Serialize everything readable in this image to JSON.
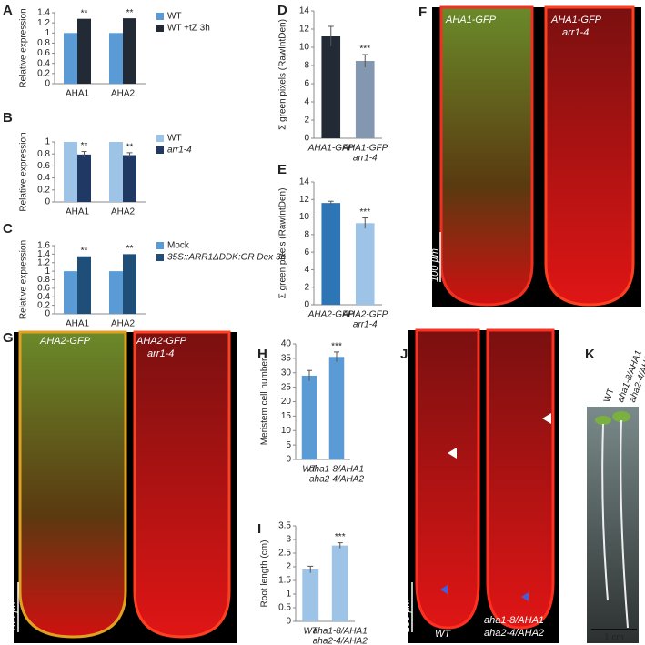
{
  "chart_data": [
    {
      "type": "bar",
      "panel": "A",
      "y_label": "Relative expression",
      "categories": [
        [
          "AHA1"
        ],
        [
          "AHA2"
        ]
      ],
      "series": [
        {
          "name": "WT",
          "color": "#5b9bd5",
          "values": [
            1,
            1
          ]
        },
        {
          "name": "WT +tZ 3h",
          "color": "#222a35",
          "values": [
            1.28,
            1.29
          ],
          "significance": [
            "**",
            "**"
          ]
        }
      ],
      "ylim": [
        0,
        1.4
      ],
      "yticks": [
        0,
        0.2,
        0.4,
        0.6,
        0.8,
        1,
        1.2,
        1.4
      ]
    },
    {
      "type": "bar",
      "panel": "B",
      "y_label": "Relative expression",
      "categories": [
        [
          "AHA1"
        ],
        [
          "AHA2"
        ]
      ],
      "series": [
        {
          "name": "WT",
          "color": "#9dc3e6",
          "values": [
            1,
            1
          ]
        },
        {
          "name": "arr1-4",
          "color": "#1f3864",
          "values": [
            0.79,
            0.78
          ],
          "errors": [
            0.05,
            0.04
          ],
          "significance": [
            "**",
            "**"
          ]
        }
      ],
      "ylim": [
        0,
        1
      ],
      "yticks": [
        0,
        0.2,
        0.4,
        0.6,
        0.8,
        1
      ]
    },
    {
      "type": "bar",
      "panel": "C",
      "y_label": "Relative expression",
      "categories": [
        [
          "AHA1"
        ],
        [
          "AHA2"
        ]
      ],
      "series": [
        {
          "name": "Mock",
          "color": "#5b9bd5",
          "values": [
            1,
            1
          ]
        },
        {
          "name": "35S::ARR1ΔDDK:GR Dex 3h",
          "color": "#1f4e79",
          "values": [
            1.35,
            1.4
          ],
          "significance": [
            "**",
            "**"
          ]
        }
      ],
      "ylim": [
        0,
        1.6
      ],
      "yticks": [
        0,
        0.2,
        0.4,
        0.6,
        0.8,
        1,
        1.2,
        1.4,
        1.6
      ]
    },
    {
      "type": "bar",
      "panel": "D",
      "y_label": "Σ green pixels (RawIntDen)",
      "categories": [
        [
          "AHA1-GFP"
        ],
        [
          "AHA1-GFP",
          "arr1-4"
        ]
      ],
      "series": [
        {
          "colors": [
            "#222a35",
            "#8497b0"
          ],
          "values": [
            11.2,
            8.5
          ],
          "errors": [
            1.1,
            0.7
          ],
          "significance": [
            null,
            "***"
          ]
        }
      ],
      "ylim": [
        0,
        14
      ],
      "yticks": [
        0,
        2,
        4,
        6,
        8,
        10,
        12,
        14
      ]
    },
    {
      "type": "bar",
      "panel": "E",
      "y_label": "Σ green pixels (RawIntDen)",
      "categories": [
        [
          "AHA2-GFP"
        ],
        [
          "AHA2-GFP",
          "arr1-4"
        ]
      ],
      "series": [
        {
          "colors": [
            "#2e75b6",
            "#9dc3e6"
          ],
          "values": [
            11.6,
            9.3
          ],
          "errors": [
            0.2,
            0.6
          ],
          "significance": [
            null,
            "***"
          ]
        }
      ],
      "ylim": [
        0,
        14
      ],
      "yticks": [
        0,
        2,
        4,
        6,
        8,
        10,
        12,
        14
      ]
    },
    {
      "type": "bar",
      "panel": "H",
      "y_label": "Meristem cell number",
      "categories": [
        [
          "WT"
        ],
        [
          "aha1-8/AHA1",
          "aha2-4/AHA2"
        ]
      ],
      "series": [
        {
          "colors": [
            "#5b9bd5",
            "#5b9bd5"
          ],
          "values": [
            29,
            35.5
          ],
          "errors": [
            1.8,
            1.7
          ],
          "significance": [
            null,
            "***"
          ]
        }
      ],
      "ylim": [
        0,
        40
      ],
      "yticks": [
        0,
        5,
        10,
        15,
        20,
        25,
        30,
        35,
        40
      ]
    },
    {
      "type": "bar",
      "panel": "I",
      "y_label": "Root length (cm)",
      "categories": [
        [
          "WT"
        ],
        [
          "aha1-8/AHA1",
          "aha2-4/AHA2"
        ]
      ],
      "series": [
        {
          "colors": [
            "#9dc3e6",
            "#9dc3e6"
          ],
          "values": [
            1.9,
            2.78
          ],
          "errors": [
            0.12,
            0.1
          ],
          "significance": [
            null,
            "***"
          ]
        }
      ],
      "ylim": [
        0,
        3.5
      ],
      "yticks": [
        0,
        0.5,
        1,
        1.5,
        2,
        2.5,
        3,
        3.5
      ]
    }
  ],
  "images": {
    "F": {
      "panel": "F",
      "left": "AHA1-GFP",
      "right": [
        "AHA1-GFP",
        "arr1-4"
      ],
      "scale": "100 µm"
    },
    "G": {
      "panel": "G",
      "left": "AHA2-GFP",
      "right": [
        "AHA2-GFP",
        "arr1-4"
      ],
      "scale": "100 µm"
    },
    "J": {
      "panel": "J",
      "left": "WT",
      "right": [
        "aha1-8/AHA1",
        "aha2-4/AHA2"
      ],
      "scale": "100 µm"
    },
    "K": {
      "panel": "K",
      "labels": [
        "WT",
        "aha1-8/AHA1",
        "aha2-4/AHA2"
      ],
      "scale": "1 cm"
    }
  }
}
